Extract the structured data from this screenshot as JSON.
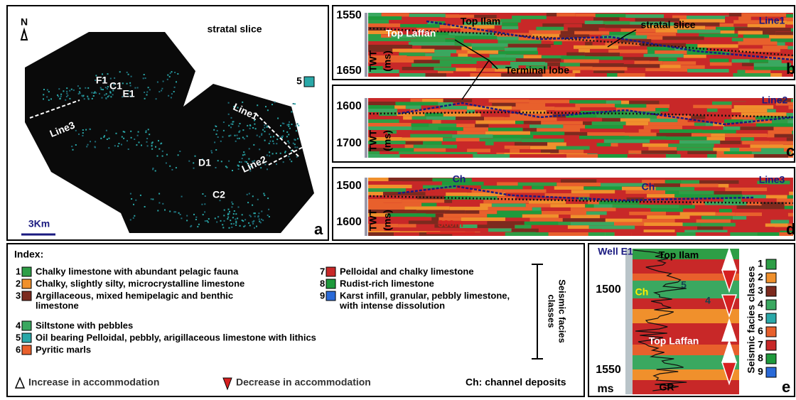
{
  "panel_a": {
    "letter": "a",
    "north": "N",
    "title": "stratal slice",
    "class_label": "5",
    "scale": "3Km",
    "labels": [
      "F1",
      "C1",
      "E1",
      "Line3",
      "Line1",
      "D1",
      "Line2",
      "C2"
    ]
  },
  "panel_b": {
    "letter": "b",
    "line": "Line1",
    "ticks": [
      "1550",
      "1650"
    ],
    "axis": "TWT",
    "unit": "(ms)",
    "annotations": [
      "Top Ilam",
      "Top Laffan",
      "stratal slice",
      "Terminal lobe"
    ]
  },
  "panel_c": {
    "letter": "c",
    "line": "Line2",
    "ticks": [
      "1600",
      "1700"
    ],
    "axis": "TWT",
    "unit": "(ms)"
  },
  "panel_d": {
    "letter": "d",
    "line": "Line3",
    "ticks": [
      "1500",
      "1600"
    ],
    "axis": "TWT",
    "unit": "(ms)",
    "annotations": [
      "Ch",
      "Ch",
      "300m"
    ]
  },
  "index": {
    "title": "Index:",
    "items": [
      {
        "num": "1",
        "color": "#2e9e46",
        "lines": [
          "Chalky limestone with abundant pelagic fauna"
        ]
      },
      {
        "num": "2",
        "color": "#f0902c",
        "lines": [
          "Chalky, slightly silty, microcrystalline limestone"
        ]
      },
      {
        "num": "3",
        "color": "#7c2a1e",
        "lines": [
          "Argillaceous, mixed hemipelagic and benthic",
          "limestone"
        ]
      },
      {
        "num": "4",
        "color": "#3aa860",
        "lines": [
          "Siltstone with pebbles"
        ]
      },
      {
        "num": "5",
        "color": "#2aa8a8",
        "lines": [
          "Oil bearing Pelloidal, pebbly, arigillaceous limestone with lithics"
        ]
      },
      {
        "num": "6",
        "color": "#e8602c",
        "lines": [
          "Pyritic marls"
        ]
      },
      {
        "num": "7",
        "color": "#c82828",
        "lines": [
          "Pelloidal and chalky limestone"
        ]
      },
      {
        "num": "8",
        "color": "#1e9a3c",
        "lines": [
          "Rudist-rich limestone"
        ]
      },
      {
        "num": "9",
        "color": "#2a6ad8",
        "lines": [
          "Karst infill, granular, pebbly limestone,",
          "with intense dissolution"
        ]
      }
    ],
    "bracket_label": [
      "Seismic facies",
      "classes"
    ],
    "increase": "Increase in accommodation",
    "decrease": "Decrease in accommodation",
    "channel": "Ch: channel deposits"
  },
  "panel_e": {
    "letter": "e",
    "well": "Well E1",
    "top1": "Top Ilam",
    "top2": "Top Laffan",
    "ticks": [
      "1500",
      "1550"
    ],
    "unit": "ms",
    "ch": "Ch",
    "n5": "5",
    "n4": "4",
    "gr": "GR",
    "legend_title": "Seismic facies classes",
    "classes": [
      "1",
      "2",
      "3",
      "4",
      "5",
      "6",
      "7",
      "8",
      "9"
    ]
  }
}
